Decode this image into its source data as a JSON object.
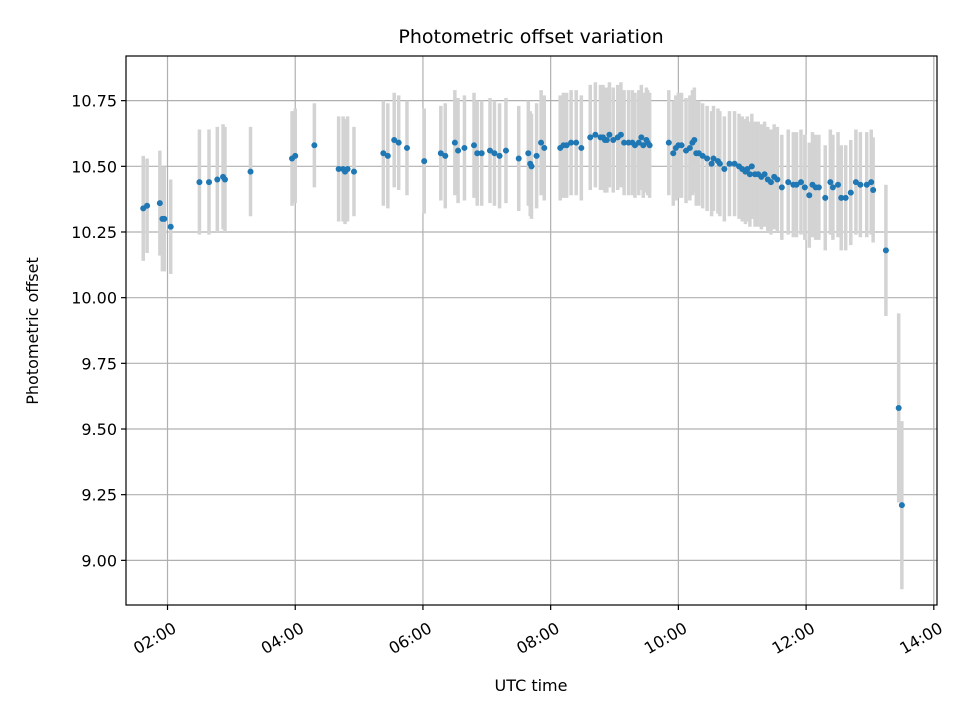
{
  "chart_data": {
    "type": "scatter",
    "title": "Photometric offset variation",
    "xlabel": "UTC time",
    "ylabel": "Photometric offset",
    "x_unit": "hours UTC",
    "xlim": [
      1.35,
      14.05
    ],
    "ylim": [
      8.83,
      10.92
    ],
    "x_ticks": [
      {
        "value": 2,
        "label": "02:00"
      },
      {
        "value": 4,
        "label": "04:00"
      },
      {
        "value": 6,
        "label": "06:00"
      },
      {
        "value": 8,
        "label": "08:00"
      },
      {
        "value": 10,
        "label": "10:00"
      },
      {
        "value": 12,
        "label": "12:00"
      },
      {
        "value": 14,
        "label": "14:00"
      }
    ],
    "y_ticks": [
      {
        "value": 9.0,
        "label": "9.00"
      },
      {
        "value": 9.25,
        "label": "9.25"
      },
      {
        "value": 9.5,
        "label": "9.50"
      },
      {
        "value": 9.75,
        "label": "9.75"
      },
      {
        "value": 10.0,
        "label": "10.00"
      },
      {
        "value": 10.25,
        "label": "10.25"
      },
      {
        "value": 10.5,
        "label": "10.50"
      },
      {
        "value": 10.75,
        "label": "10.75"
      }
    ],
    "grid": true,
    "colors": {
      "points": "#1f77b4",
      "errorbars": "#d3d3d3",
      "grid": "#b0b0b0"
    },
    "series": [
      {
        "x": [
          1.62,
          1.68,
          1.88,
          1.92,
          1.95,
          2.05,
          2.5,
          2.65,
          2.78,
          2.87,
          2.9,
          3.3,
          3.95,
          4.0,
          4.3,
          4.68,
          4.75,
          4.78,
          4.82,
          4.92,
          5.38,
          5.45,
          5.55,
          5.62,
          5.75,
          6.02,
          6.28,
          6.35,
          6.5,
          6.55,
          6.65,
          6.8,
          6.85,
          6.92,
          7.05,
          7.12,
          7.2,
          7.3,
          7.5,
          7.65,
          7.68,
          7.7,
          7.78,
          7.85,
          7.9,
          8.15,
          8.2,
          8.25,
          8.32,
          8.4,
          8.48,
          8.62,
          8.7,
          8.78,
          8.82,
          8.85,
          8.88,
          8.92,
          8.98,
          9.05,
          9.1,
          9.15,
          9.22,
          9.28,
          9.32,
          9.38,
          9.42,
          9.45,
          9.5,
          9.52,
          9.55,
          9.85,
          9.92,
          9.96,
          10.0,
          10.05,
          10.12,
          10.18,
          10.22,
          10.25,
          10.28,
          10.32,
          10.38,
          10.45,
          10.52,
          10.55,
          10.62,
          10.65,
          10.72,
          10.8,
          10.88,
          10.95,
          11.0,
          11.05,
          11.08,
          11.12,
          11.15,
          11.2,
          11.25,
          11.3,
          11.35,
          11.4,
          11.45,
          11.5,
          11.55,
          11.62,
          11.72,
          11.8,
          11.85,
          11.92,
          11.98,
          12.05,
          12.1,
          12.15,
          12.2,
          12.3,
          12.38,
          12.42,
          12.5,
          12.55,
          12.62,
          12.7,
          12.78,
          12.85,
          12.95,
          13.02,
          13.05,
          13.25,
          13.45,
          13.5
        ],
        "y": [
          10.34,
          10.35,
          10.36,
          10.3,
          10.3,
          10.27,
          10.44,
          10.44,
          10.45,
          10.46,
          10.45,
          10.48,
          10.53,
          10.54,
          10.58,
          10.49,
          10.49,
          10.48,
          10.49,
          10.48,
          10.55,
          10.54,
          10.6,
          10.59,
          10.57,
          10.52,
          10.55,
          10.54,
          10.59,
          10.56,
          10.57,
          10.58,
          10.55,
          10.55,
          10.56,
          10.55,
          10.54,
          10.56,
          10.53,
          10.55,
          10.51,
          10.5,
          10.54,
          10.59,
          10.57,
          10.57,
          10.58,
          10.58,
          10.59,
          10.59,
          10.57,
          10.61,
          10.62,
          10.61,
          10.61,
          10.6,
          10.6,
          10.62,
          10.6,
          10.61,
          10.62,
          10.59,
          10.59,
          10.59,
          10.58,
          10.59,
          10.61,
          10.58,
          10.6,
          10.59,
          10.58,
          10.59,
          10.55,
          10.57,
          10.58,
          10.58,
          10.56,
          10.57,
          10.59,
          10.6,
          10.55,
          10.55,
          10.54,
          10.53,
          10.51,
          10.53,
          10.52,
          10.51,
          10.49,
          10.51,
          10.51,
          10.5,
          10.49,
          10.48,
          10.49,
          10.47,
          10.5,
          10.47,
          10.47,
          10.46,
          10.47,
          10.45,
          10.44,
          10.46,
          10.45,
          10.42,
          10.44,
          10.43,
          10.43,
          10.44,
          10.42,
          10.39,
          10.43,
          10.42,
          10.42,
          10.38,
          10.44,
          10.42,
          10.43,
          10.38,
          10.38,
          10.4,
          10.44,
          10.43,
          10.43,
          10.44,
          10.41,
          10.18,
          9.58,
          9.21
        ],
        "err": [
          0.2,
          0.18,
          0.2,
          0.2,
          0.2,
          0.18,
          0.2,
          0.2,
          0.2,
          0.2,
          0.2,
          0.17,
          0.18,
          0.18,
          0.16,
          0.2,
          0.2,
          0.2,
          0.2,
          0.17,
          0.2,
          0.2,
          0.18,
          0.18,
          0.18,
          0.2,
          0.18,
          0.2,
          0.2,
          0.2,
          0.2,
          0.2,
          0.2,
          0.2,
          0.2,
          0.2,
          0.2,
          0.2,
          0.2,
          0.2,
          0.2,
          0.2,
          0.2,
          0.2,
          0.2,
          0.2,
          0.2,
          0.2,
          0.2,
          0.2,
          0.2,
          0.2,
          0.2,
          0.2,
          0.2,
          0.2,
          0.2,
          0.2,
          0.2,
          0.2,
          0.2,
          0.2,
          0.2,
          0.2,
          0.2,
          0.2,
          0.2,
          0.2,
          0.2,
          0.2,
          0.2,
          0.2,
          0.2,
          0.2,
          0.2,
          0.2,
          0.2,
          0.2,
          0.2,
          0.2,
          0.2,
          0.2,
          0.2,
          0.2,
          0.2,
          0.2,
          0.2,
          0.2,
          0.2,
          0.2,
          0.2,
          0.2,
          0.2,
          0.2,
          0.2,
          0.2,
          0.2,
          0.2,
          0.2,
          0.2,
          0.2,
          0.2,
          0.2,
          0.2,
          0.2,
          0.2,
          0.2,
          0.2,
          0.2,
          0.2,
          0.2,
          0.2,
          0.2,
          0.2,
          0.2,
          0.2,
          0.2,
          0.2,
          0.2,
          0.2,
          0.2,
          0.2,
          0.2,
          0.2,
          0.2,
          0.2,
          0.2,
          0.25,
          0.36,
          0.32
        ]
      }
    ]
  }
}
